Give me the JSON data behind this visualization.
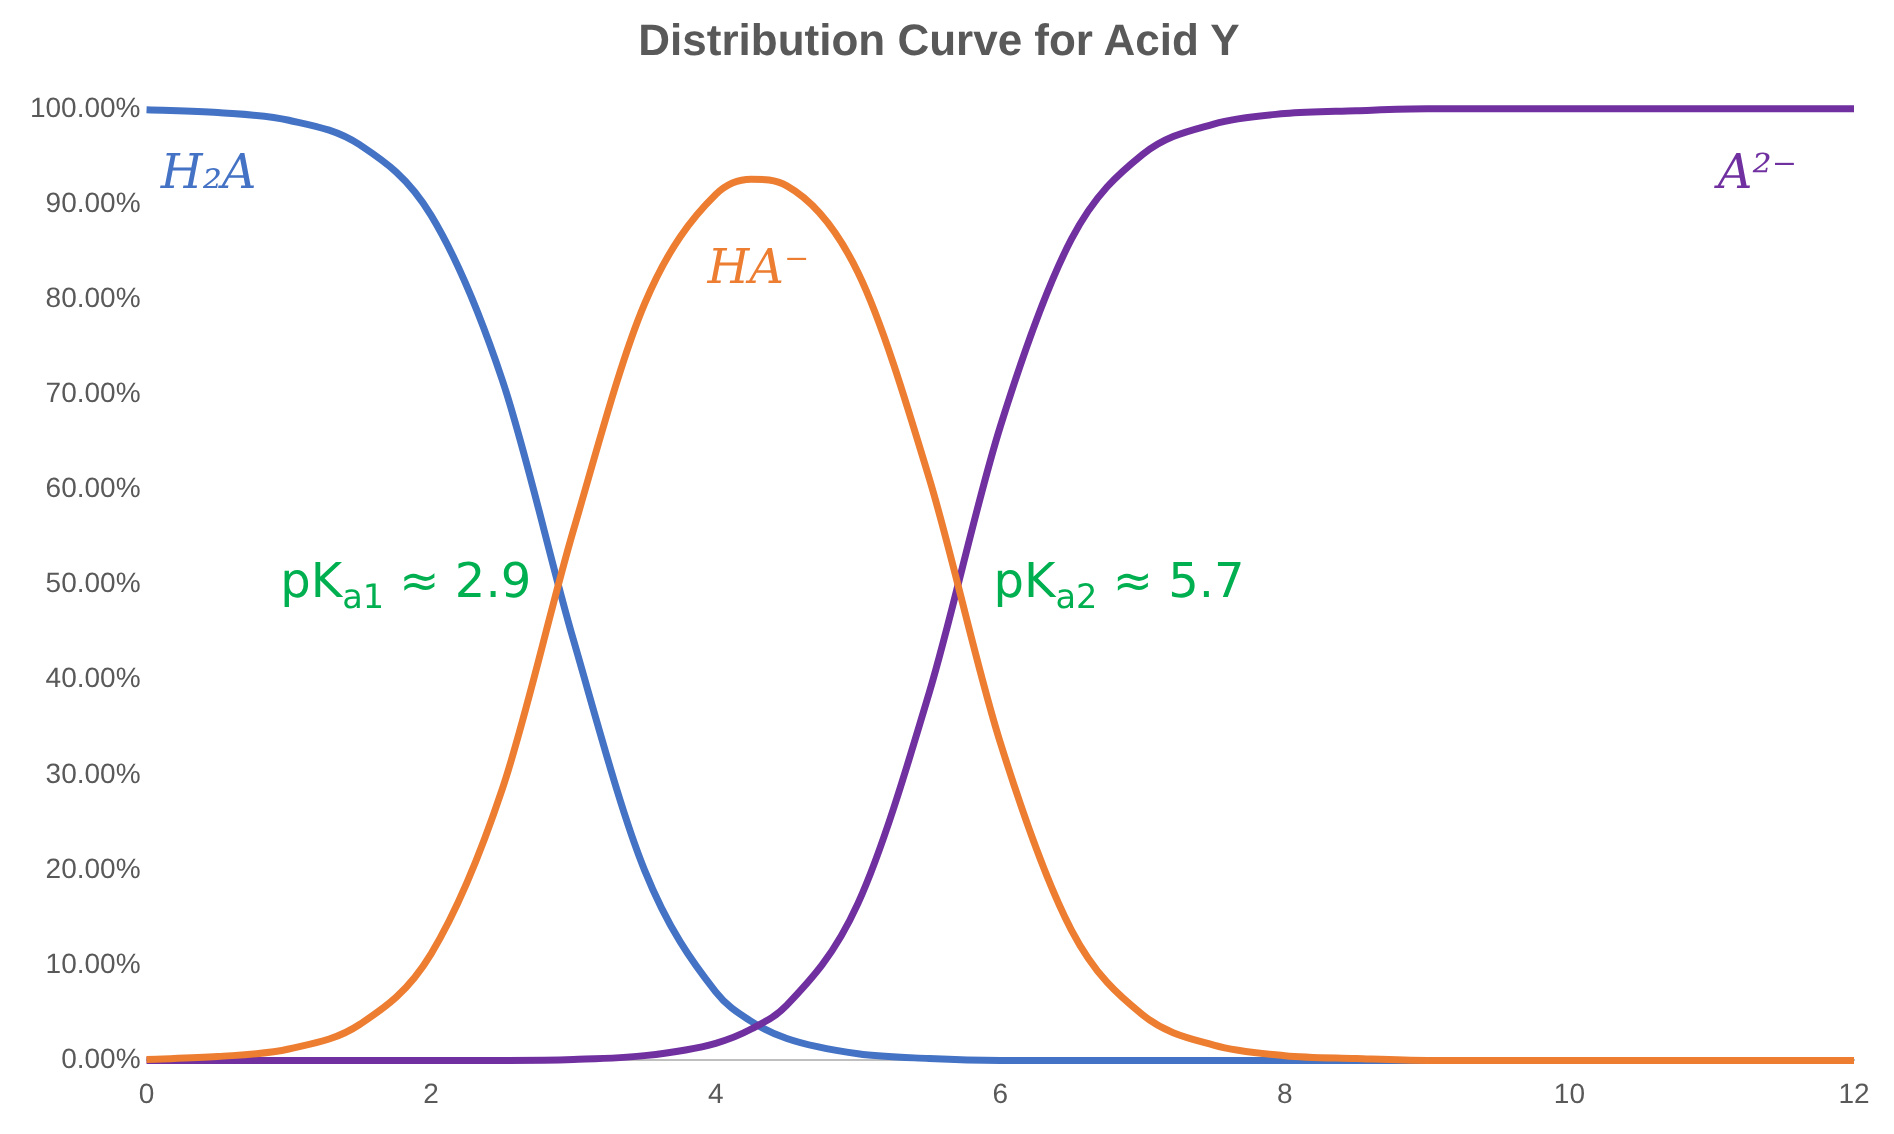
{
  "chart_data": {
    "type": "line",
    "title": "Distribution Curve for Acid Y",
    "x": [
      0,
      0.5,
      1,
      1.5,
      2,
      2.5,
      3,
      3.5,
      4,
      4.25,
      4.5,
      5,
      5.5,
      6,
      6.5,
      7,
      7.5,
      8,
      8.5,
      9,
      10,
      11,
      12
    ],
    "series": [
      {
        "name": "H₂A",
        "color": "#4472c4",
        "values": [
          99.9,
          99.6,
          98.8,
          96.2,
          88.8,
          71.5,
          44.2,
          20.0,
          7.2,
          4.1,
          2.3,
          0.7,
          0.2,
          0,
          0,
          0,
          0,
          0,
          0,
          0,
          0,
          null,
          null
        ]
      },
      {
        "name": "HA⁻",
        "color": "#ed7d31",
        "values": [
          0.1,
          0.4,
          1.2,
          3.8,
          11.2,
          28.5,
          55.7,
          79.5,
          91.0,
          92.6,
          91.9,
          82.8,
          61.2,
          33.4,
          13.7,
          4.8,
          1.6,
          0.5,
          0.2,
          0,
          0,
          0,
          0
        ]
      },
      {
        "name": "A²⁻",
        "color": "#7030a0",
        "values": [
          0,
          0,
          0,
          0,
          0,
          0,
          0.1,
          0.5,
          1.8,
          3.3,
          5.8,
          16.5,
          38.6,
          66.6,
          86.3,
          95.2,
          98.4,
          99.5,
          99.8,
          100,
          100,
          100,
          100
        ]
      }
    ],
    "xlim": [
      0,
      12
    ],
    "xticks": [
      0,
      2,
      4,
      6,
      8,
      10,
      12
    ],
    "ylim": [
      0,
      100
    ],
    "yticks": [
      {
        "value": 0,
        "label": "0.00%"
      },
      {
        "value": 10,
        "label": "10.00%"
      },
      {
        "value": 20,
        "label": "20.00%"
      },
      {
        "value": 30,
        "label": "30.00%"
      },
      {
        "value": 40,
        "label": "40.00%"
      },
      {
        "value": 50,
        "label": "50.00%"
      },
      {
        "value": 60,
        "label": "60.00%"
      },
      {
        "value": 70,
        "label": "70.00%"
      },
      {
        "value": 80,
        "label": "80.00%"
      },
      {
        "value": 90,
        "label": "90.00%"
      },
      {
        "value": 100,
        "label": "100.00%"
      }
    ],
    "annotations": [
      {
        "text": "pK$_{a1}$ ≈ 2.9",
        "x": 2.9,
        "y": 50
      },
      {
        "text": "pK$_{a2}$ ≈ 5.7",
        "x": 5.7,
        "y": 50
      }
    ],
    "grid": false,
    "legend": false,
    "marker": "none",
    "line_style": "solid"
  }
}
